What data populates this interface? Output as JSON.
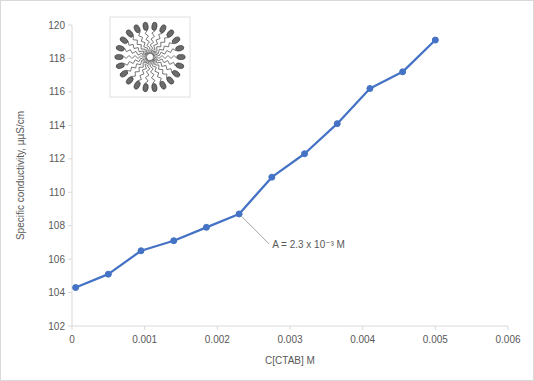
{
  "chart_data": {
    "type": "line",
    "x_label": "C[CTAB] M",
    "y_label": "Specific conductivity, µµS/cm",
    "x": [
      5e-05,
      0.0005,
      0.00095,
      0.0014,
      0.00185,
      0.0023,
      0.00275,
      0.0032,
      0.00365,
      0.0041,
      0.00455,
      0.005
    ],
    "values": [
      104.3,
      105.1,
      106.5,
      107.1,
      107.9,
      108.7,
      110.9,
      112.3,
      114.1,
      116.2,
      117.2,
      119.1
    ],
    "color": "#4472c4",
    "marker": "circle",
    "xlim": [
      0,
      0.006
    ],
    "xticks": [
      0,
      0.001,
      0.002,
      0.003,
      0.004,
      0.005,
      0.006
    ],
    "ylim": [
      102,
      120
    ],
    "yticks": [
      102,
      104,
      106,
      108,
      110,
      112,
      114,
      116,
      118,
      120
    ],
    "grid": false,
    "annotations": [
      {
        "text": "A = 2.3 x 10⁻³ M",
        "x": 0.0023,
        "y": 108.7
      }
    ]
  }
}
